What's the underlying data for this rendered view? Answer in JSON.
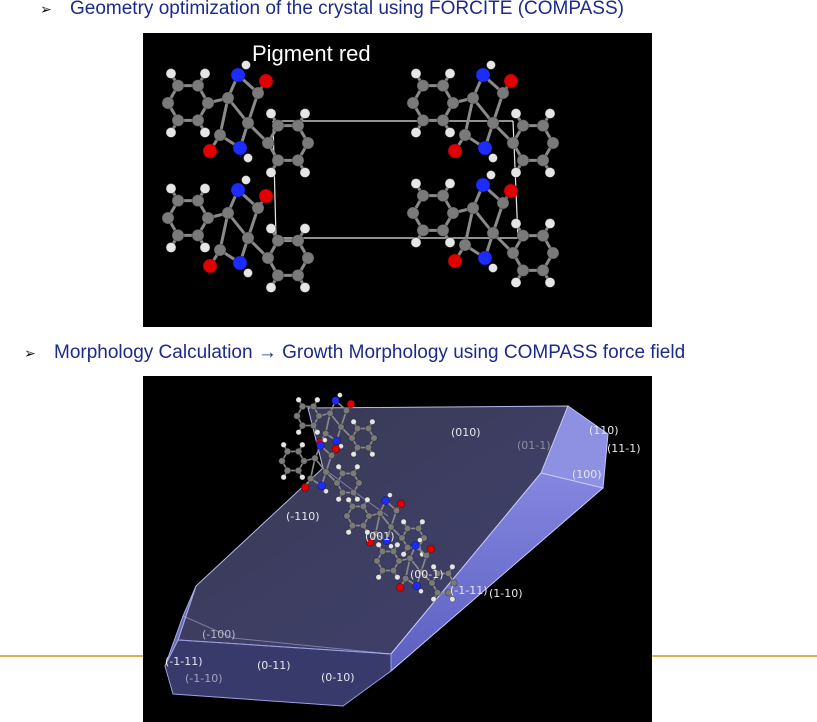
{
  "bullets": {
    "first": "Geometry optimization of the crystal using FORCITE (COMPASS)",
    "second_a": "Morphology Calculation ",
    "second_arrow": "→",
    "second_b": " Growth Morphology using COMPASS force field",
    "marker": "➢"
  },
  "crystal": {
    "title": "Pigment red",
    "atom_colors": {
      "carbon": "#7a7a7a",
      "hydrogen": "#e6e6e6",
      "nitrogen": "#1c2cff",
      "oxygen": "#e00000"
    }
  },
  "morphology": {
    "faces": {
      "f010": "(010)",
      "f0m11": "(01-1)",
      "f110": "(110)",
      "f11m1": "(11-1)",
      "f100": "(100)",
      "fm110": "(-110)",
      "f001": "(001)",
      "f00m1": "(00-1)",
      "fm111a": "(-1-11)",
      "f1m10": "(1-10)",
      "fm100": "(-100)",
      "fm1m11": "(-1-11)",
      "f0m11b": "(0-11)",
      "fm1m10": "(-1-10)",
      "f0m10": "(0-10)"
    },
    "face_color": "#7d7fd6"
  }
}
